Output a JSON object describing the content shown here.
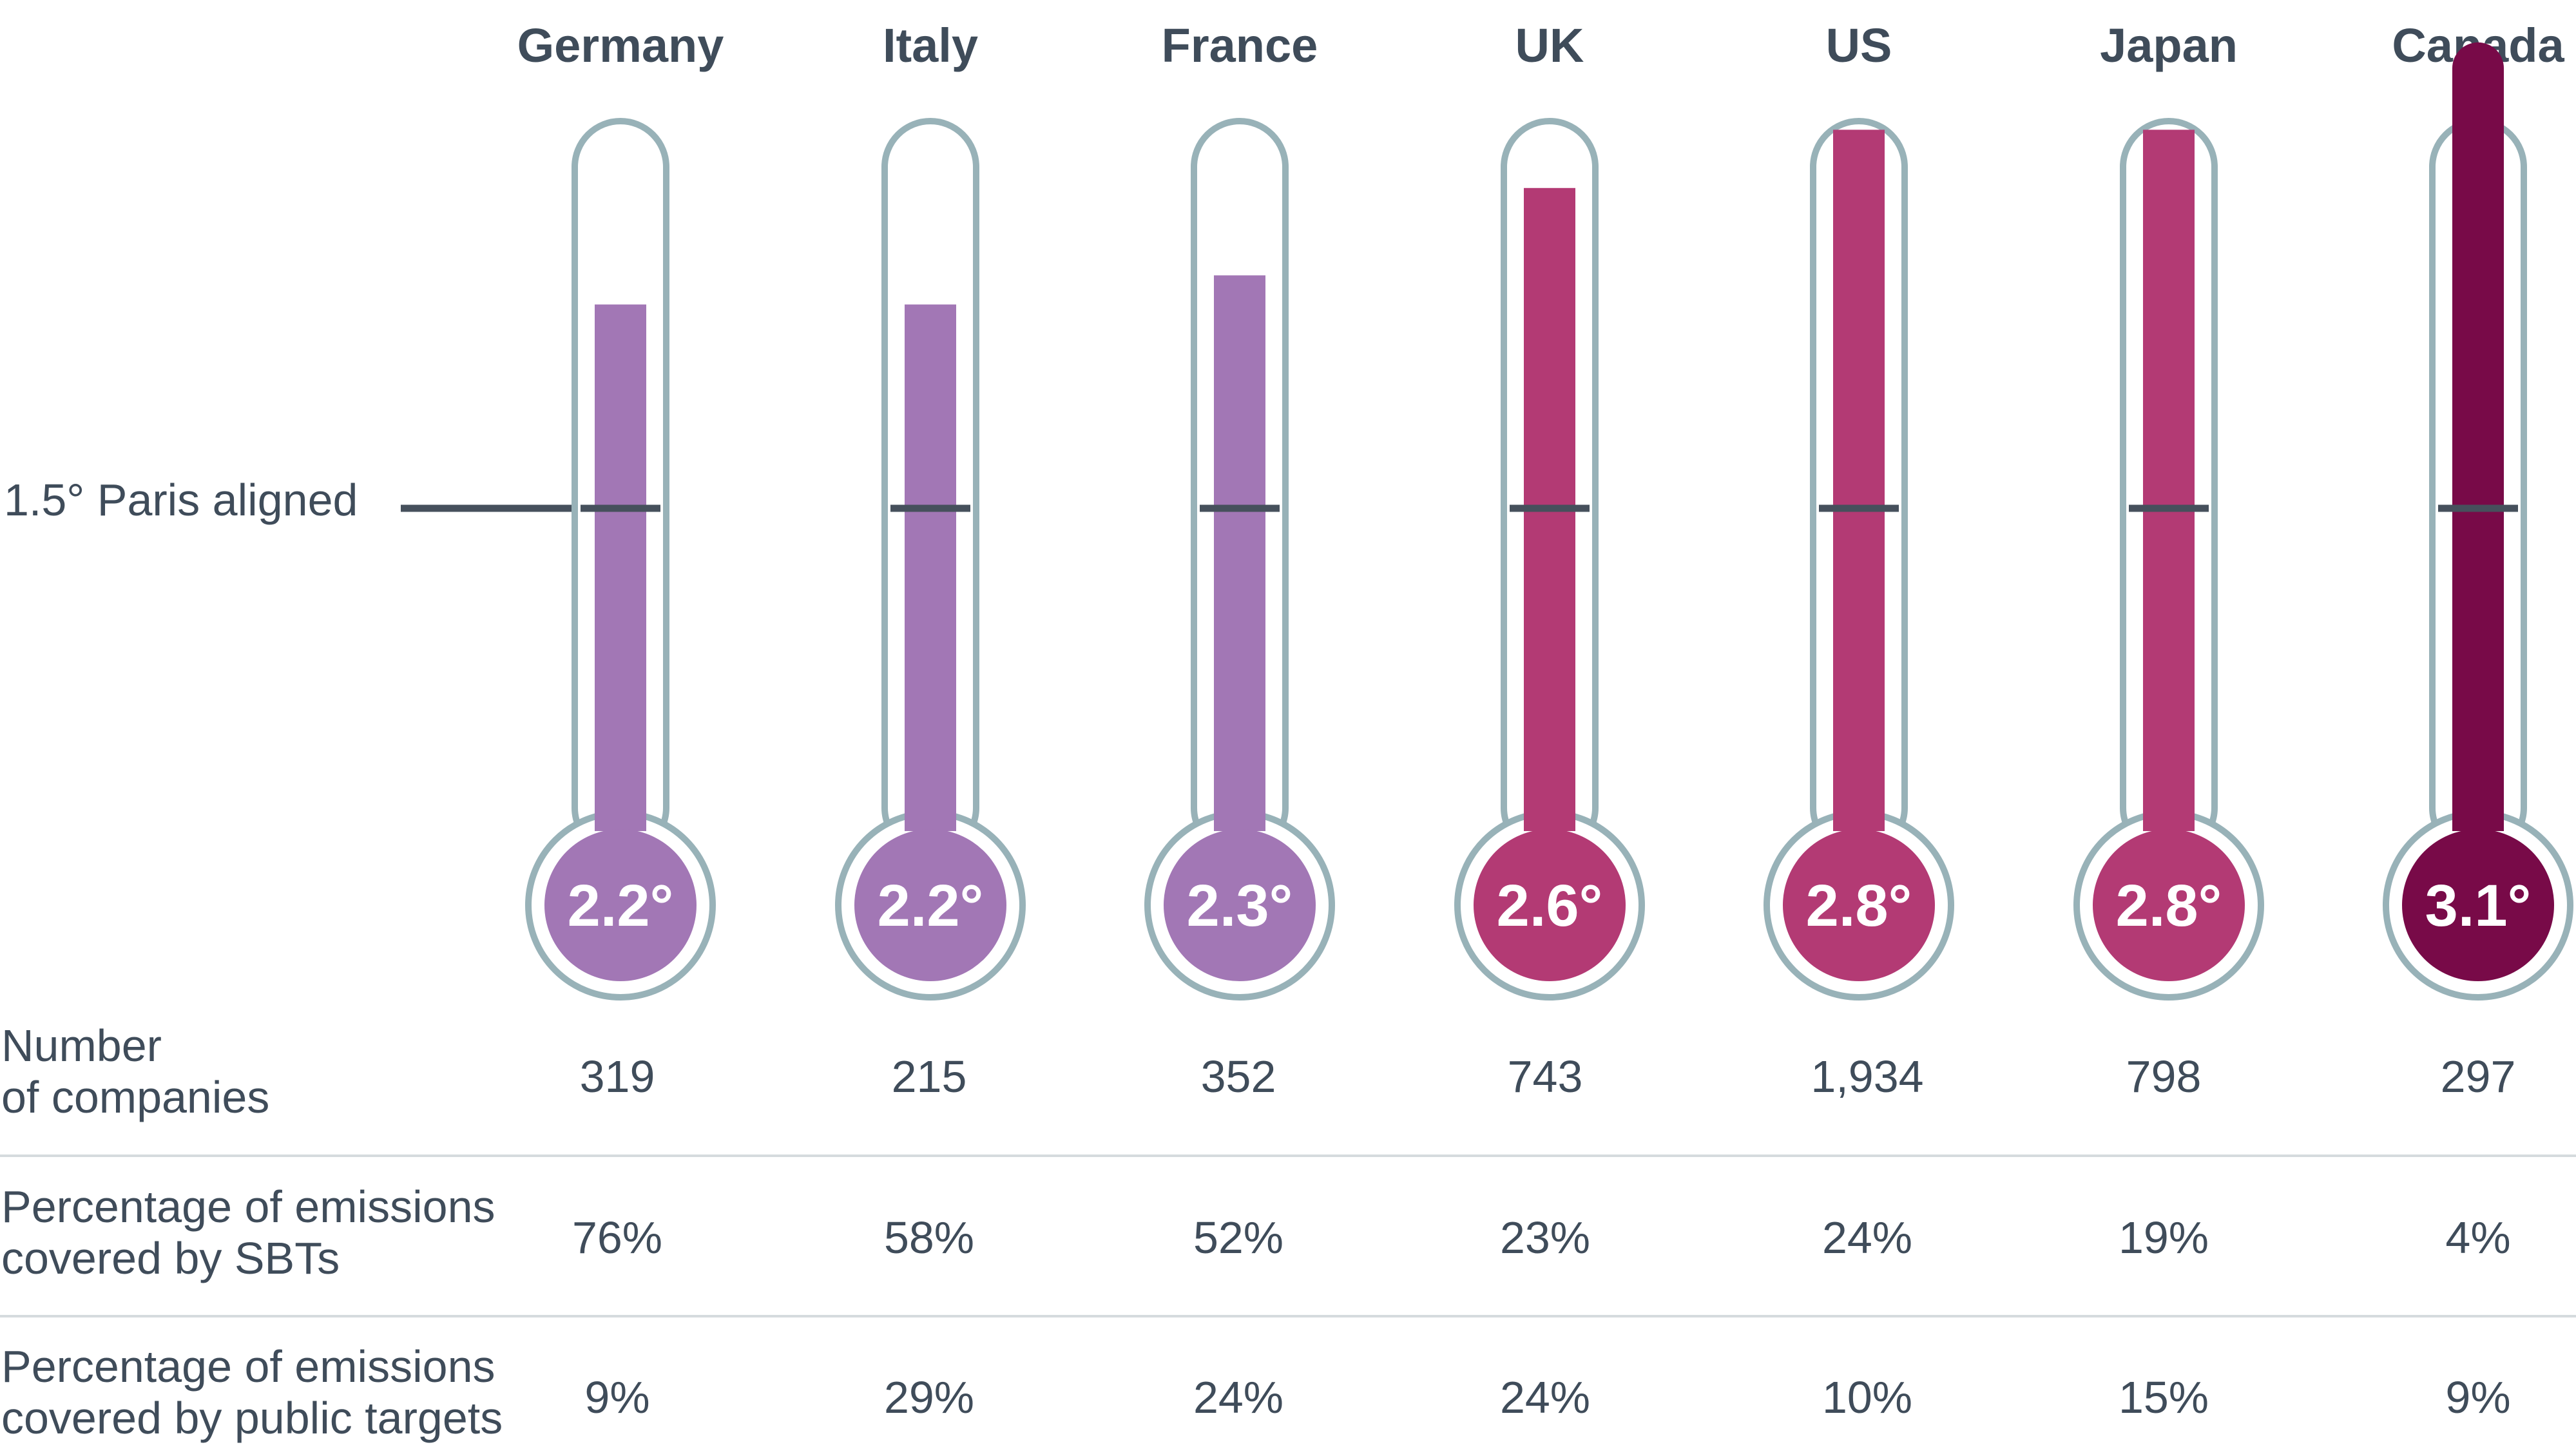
{
  "chart_data": {
    "type": "thermometer",
    "categories": [
      "Germany",
      "Italy",
      "France",
      "UK",
      "US",
      "Japan",
      "Canada"
    ],
    "values": [
      2.2,
      2.2,
      2.3,
      2.6,
      2.8,
      2.8,
      3.1
    ],
    "value_labels": [
      "2.2°",
      "2.2°",
      "2.3°",
      "2.6°",
      "2.8°",
      "2.8°",
      "3.1°"
    ],
    "value_unit": "°",
    "reference": {
      "label": "1.5° Paris aligned",
      "value": 1.5
    },
    "colors": [
      "#a277b5",
      "#a277b5",
      "#a277b5",
      "#b33a74",
      "#b33a74",
      "#b33a74",
      "#780a48"
    ],
    "palette": {
      "outline": "#98b2b8",
      "marker": "#46505c",
      "text": "#3f4c5a",
      "divider": "#d5dbde"
    },
    "table": {
      "rows": [
        {
          "label": [
            "Number",
            "of companies"
          ],
          "values": [
            "319",
            "215",
            "352",
            "743",
            "1,934",
            "798",
            "297"
          ]
        },
        {
          "label": [
            "Percentage of emissions",
            "covered by SBTs"
          ],
          "values": [
            "76%",
            "58%",
            "52%",
            "23%",
            "24%",
            "19%",
            "4%"
          ]
        },
        {
          "label": [
            "Percentage of emissions",
            "covered by public targets"
          ],
          "values": [
            "9%",
            "29%",
            "24%",
            "24%",
            "10%",
            "15%",
            "9%"
          ]
        }
      ]
    }
  }
}
